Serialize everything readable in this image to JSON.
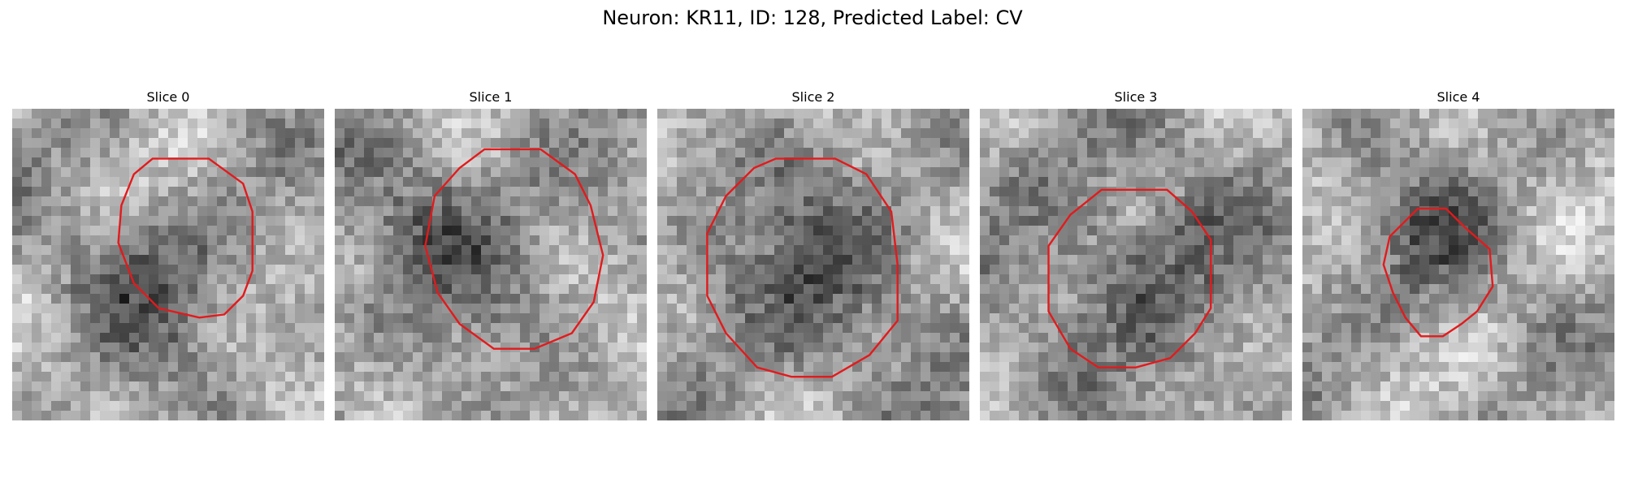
{
  "figure": {
    "title": "Neuron: KR11, ID: 128, Predicted Label: CV",
    "contour_color": "#e31a1c"
  },
  "panels": [
    {
      "title": "Slice 0",
      "seed": 11,
      "dark_center": [
        0.42,
        0.55
      ],
      "dark_radius": 0.18,
      "contour": [
        [
          0.45,
          0.16
        ],
        [
          0.63,
          0.16
        ],
        [
          0.74,
          0.24
        ],
        [
          0.77,
          0.33
        ],
        [
          0.77,
          0.52
        ],
        [
          0.74,
          0.6
        ],
        [
          0.68,
          0.66
        ],
        [
          0.6,
          0.67
        ],
        [
          0.47,
          0.64
        ],
        [
          0.39,
          0.56
        ],
        [
          0.34,
          0.43
        ],
        [
          0.35,
          0.31
        ],
        [
          0.39,
          0.21
        ]
      ]
    },
    {
      "title": "Slice 1",
      "seed": 23,
      "dark_center": [
        0.35,
        0.4
      ],
      "dark_radius": 0.22,
      "contour": [
        [
          0.48,
          0.13
        ],
        [
          0.66,
          0.13
        ],
        [
          0.77,
          0.21
        ],
        [
          0.82,
          0.31
        ],
        [
          0.86,
          0.47
        ],
        [
          0.83,
          0.62
        ],
        [
          0.76,
          0.72
        ],
        [
          0.64,
          0.77
        ],
        [
          0.51,
          0.77
        ],
        [
          0.4,
          0.69
        ],
        [
          0.33,
          0.59
        ],
        [
          0.29,
          0.44
        ],
        [
          0.32,
          0.28
        ],
        [
          0.4,
          0.19
        ]
      ]
    },
    {
      "title": "Slice 2",
      "seed": 37,
      "dark_center": [
        0.5,
        0.52
      ],
      "dark_radius": 0.26,
      "contour": [
        [
          0.38,
          0.16
        ],
        [
          0.57,
          0.16
        ],
        [
          0.67,
          0.21
        ],
        [
          0.75,
          0.33
        ],
        [
          0.77,
          0.5
        ],
        [
          0.77,
          0.68
        ],
        [
          0.68,
          0.79
        ],
        [
          0.56,
          0.86
        ],
        [
          0.43,
          0.86
        ],
        [
          0.32,
          0.83
        ],
        [
          0.22,
          0.72
        ],
        [
          0.16,
          0.6
        ],
        [
          0.16,
          0.4
        ],
        [
          0.22,
          0.28
        ],
        [
          0.31,
          0.19
        ]
      ]
    },
    {
      "title": "Slice 3",
      "seed": 53,
      "dark_center": [
        0.52,
        0.5
      ],
      "dark_radius": 0.26,
      "contour": [
        [
          0.39,
          0.26
        ],
        [
          0.6,
          0.26
        ],
        [
          0.68,
          0.33
        ],
        [
          0.74,
          0.42
        ],
        [
          0.74,
          0.64
        ],
        [
          0.69,
          0.72
        ],
        [
          0.61,
          0.8
        ],
        [
          0.5,
          0.83
        ],
        [
          0.38,
          0.83
        ],
        [
          0.29,
          0.77
        ],
        [
          0.22,
          0.65
        ],
        [
          0.22,
          0.44
        ],
        [
          0.29,
          0.34
        ]
      ]
    },
    {
      "title": "Slice 4",
      "seed": 71,
      "dark_center": [
        0.41,
        0.43
      ],
      "dark_radius": 0.16,
      "contour": [
        [
          0.37,
          0.32
        ],
        [
          0.46,
          0.32
        ],
        [
          0.52,
          0.38
        ],
        [
          0.6,
          0.45
        ],
        [
          0.61,
          0.57
        ],
        [
          0.56,
          0.65
        ],
        [
          0.51,
          0.69
        ],
        [
          0.45,
          0.73
        ],
        [
          0.38,
          0.73
        ],
        [
          0.33,
          0.67
        ],
        [
          0.29,
          0.59
        ],
        [
          0.26,
          0.5
        ],
        [
          0.28,
          0.41
        ]
      ]
    }
  ]
}
